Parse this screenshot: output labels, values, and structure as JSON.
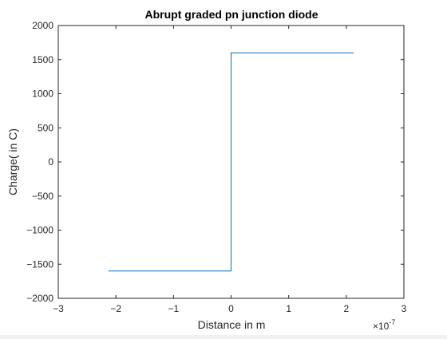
{
  "chart_data": {
    "type": "line",
    "title": "Abrupt graded pn junction diode",
    "xlabel": "Distance in m",
    "ylabel": "Charge( in C)",
    "x_exponent_base": "×10",
    "x_exponent_power": "-7",
    "xlim": [
      -3,
      3
    ],
    "ylim": [
      -2000,
      2000
    ],
    "xticks": [
      -3,
      -2,
      -1,
      0,
      1,
      2,
      3
    ],
    "yticks": [
      -2000,
      -1500,
      -1000,
      -500,
      0,
      500,
      1000,
      1500,
      2000
    ],
    "grid": false,
    "series": [
      {
        "color": "#0072bd",
        "x": [
          -2.13,
          0,
          0,
          2.13
        ],
        "y": [
          -1600,
          -1600,
          1600,
          1600
        ]
      }
    ]
  }
}
